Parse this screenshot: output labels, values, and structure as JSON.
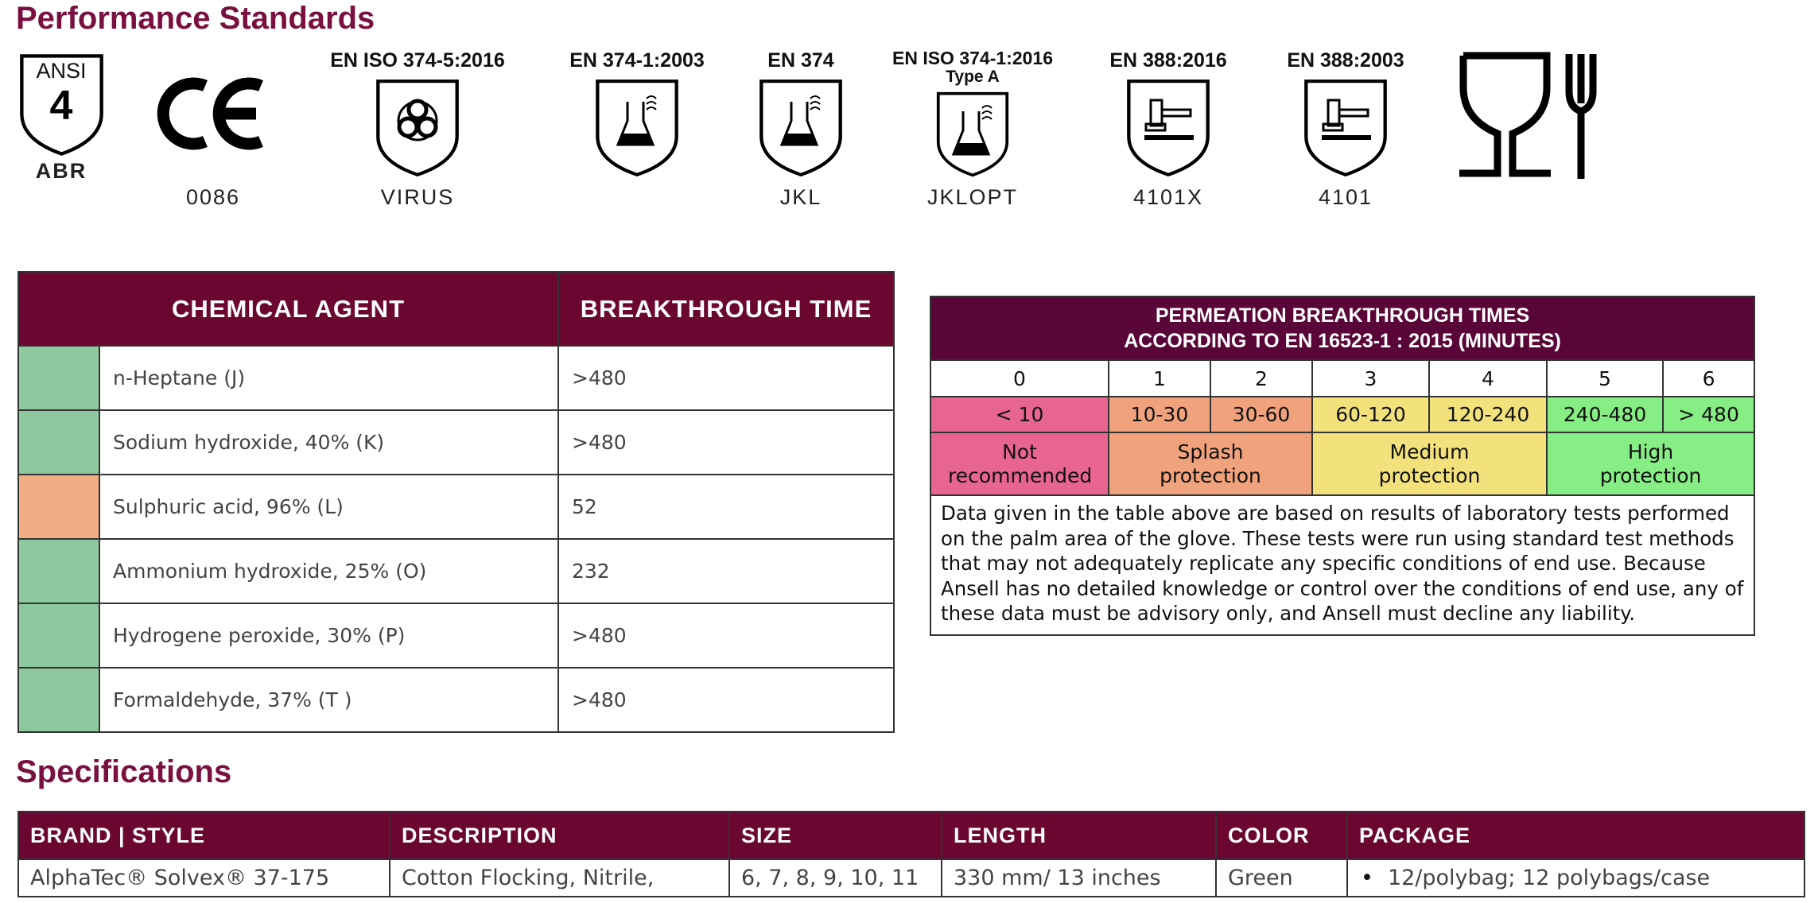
{
  "header": {
    "title": "Performance Standards"
  },
  "standards": {
    "ansi": {
      "label": "ANSI",
      "grade": "4",
      "code": "ABR"
    },
    "ce": {
      "code": "0086"
    },
    "virus": {
      "label": "EN ISO 374-5:2016",
      "code": "VIRUS"
    },
    "en374_2003": {
      "label": "EN 374-1:2003"
    },
    "en374": {
      "label": "EN 374",
      "code": "JKL"
    },
    "en374_2016": {
      "label": "EN ISO 374-1:2016",
      "sublabel": "Type A",
      "code": "JKLOPT"
    },
    "en388_2016": {
      "label": "EN 388:2016",
      "code": "4101X"
    },
    "en388_2003": {
      "label": "EN 388:2003",
      "code": "4101"
    }
  },
  "chemical_table": {
    "headers": [
      "CHEMICAL AGENT",
      "BREAKTHROUGH TIME"
    ],
    "rows": [
      {
        "color": "#8ec89f",
        "agent": "n-Heptane (J)",
        "time": ">480"
      },
      {
        "color": "#8ec89f",
        "agent": "Sodium hydroxide, 40% (K)",
        "time": ">480"
      },
      {
        "color": "#f1ad84",
        "agent": "Sulphuric acid, 96% (L)",
        "time": "52"
      },
      {
        "color": "#8ec89f",
        "agent": "Ammonium hydroxide, 25% (O)",
        "time": "232"
      },
      {
        "color": "#8ec89f",
        "agent": "Hydrogene peroxide, 30% (P)",
        "time": ">480"
      },
      {
        "color": "#8ec89f",
        "agent": "Formaldehyde, 37% (T )",
        "time": ">480"
      }
    ]
  },
  "permeation_table": {
    "title": [
      "PERMEATION BREAKTHROUGH TIMES",
      "ACCORDING TO EN 16523-1 : 2015 (MINUTES)"
    ],
    "levels": [
      "0",
      "1",
      "2",
      "3",
      "4",
      "5",
      "6"
    ],
    "ranges": [
      "< 10",
      "10-30",
      "30-60",
      "60-120",
      "120-240",
      "240-480",
      "> 480"
    ],
    "classes": [
      {
        "label": "Not recommended",
        "color": "#e8658f"
      },
      {
        "label": "Splash protection",
        "color": "#f0a27c"
      },
      {
        "label": "Medium protection",
        "color": "#f3e27c"
      },
      {
        "label": "High protection",
        "color": "#86ee84"
      }
    ],
    "note": "Data given in the table above are based on results of laboratory tests performed on the palm area of the glove. These tests were run using standard test methods that may not adequately replicate any specific conditions of end use. Because Ansell has no detailed knowledge or control over the conditions of end use, any of these data must be advisory only, and Ansell must decline any liability."
  },
  "specifications": {
    "title": "Specifications",
    "headers": [
      "BRAND | STYLE",
      "DESCRIPTION",
      "SIZE",
      "LENGTH",
      "COLOR",
      "PACKAGE"
    ],
    "row": [
      "AlphaTec® Solvex® 37-175",
      "Cotton Flocking, Nitrile,",
      "6, 7, 8, 9, 10, 11",
      "330 mm/ 13 inches",
      "Green",
      "12/polybag; 12 polybags/case"
    ]
  }
}
